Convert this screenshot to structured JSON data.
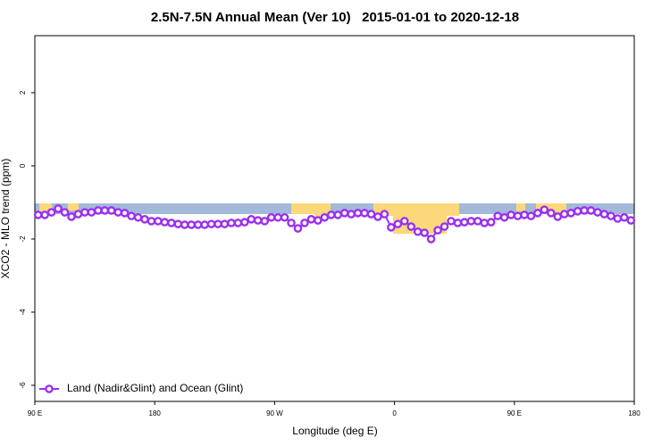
{
  "chart_data": {
    "type": "line",
    "title": "2.5N-7.5N Annual Mean (Ver 10)   2015-01-01 to 2020-12-18",
    "x_label": "Longitude (deg E)",
    "y_label": "XCO2 - MLO trend (ppm)",
    "xlim": [
      90,
      540
    ],
    "ylim": [
      -6.44,
      3.56
    ],
    "xticks": [
      {
        "value": 90,
        "label": "90 E"
      },
      180,
      {
        "value": 270,
        "label": "90 W"
      },
      {
        "value": 360,
        "label": "0"
      },
      {
        "value": 450,
        "label": "90 E"
      },
      {
        "value": 540,
        "label": "180"
      }
    ],
    "yticks": [
      -6,
      -4,
      -2,
      0,
      2
    ],
    "legend": "bottom-left",
    "series": [
      {
        "name": "Land (Nadir&Glint) and Ocean (Glint)",
        "color": "#9b30f0",
        "x": [
          92.5,
          97.5,
          102.5,
          107.5,
          112.5,
          117.5,
          122.5,
          127.5,
          132.5,
          137.5,
          142.5,
          147.5,
          152.5,
          157.5,
          162.5,
          167.5,
          172.5,
          177.5,
          182.5,
          187.5,
          192.5,
          197.5,
          202.5,
          207.5,
          212.5,
          217.5,
          222.5,
          227.5,
          232.5,
          237.5,
          242.5,
          247.5,
          252.5,
          257.5,
          262.5,
          267.5,
          272.5,
          277.5,
          282.5,
          287.5,
          292.5,
          297.5,
          302.5,
          307.5,
          312.5,
          317.5,
          322.5,
          327.5,
          332.5,
          337.5,
          342.5,
          347.5,
          352.5,
          357.5,
          362.5,
          367.5,
          372.5,
          377.5,
          382.5,
          387.5,
          392.5,
          397.5,
          402.5,
          407.5,
          412.5,
          417.5,
          422.5,
          427.5,
          432.5,
          437.5,
          442.5,
          447.5,
          452.5,
          457.5,
          462.5,
          467.5,
          472.5,
          477.5,
          482.5,
          487.5,
          492.5,
          497.5,
          502.5,
          507.5,
          512.5,
          517.5,
          522.5,
          527.5,
          532.5,
          537.5
        ],
        "values": [
          -1.34,
          -1.34,
          -1.27,
          -1.17,
          -1.27,
          -1.39,
          -1.32,
          -1.27,
          -1.27,
          -1.22,
          -1.22,
          -1.22,
          -1.27,
          -1.29,
          -1.37,
          -1.41,
          -1.46,
          -1.51,
          -1.51,
          -1.54,
          -1.56,
          -1.59,
          -1.61,
          -1.61,
          -1.61,
          -1.61,
          -1.59,
          -1.59,
          -1.59,
          -1.56,
          -1.56,
          -1.54,
          -1.46,
          -1.49,
          -1.51,
          -1.41,
          -1.41,
          -1.41,
          -1.56,
          -1.71,
          -1.56,
          -1.46,
          -1.49,
          -1.41,
          -1.34,
          -1.34,
          -1.29,
          -1.32,
          -1.29,
          -1.29,
          -1.32,
          -1.39,
          -1.32,
          -1.68,
          -1.59,
          -1.51,
          -1.66,
          -1.8,
          -1.83,
          -2.0,
          -1.76,
          -1.66,
          -1.51,
          -1.56,
          -1.54,
          -1.51,
          -1.51,
          -1.56,
          -1.54,
          -1.37,
          -1.41,
          -1.34,
          -1.37,
          -1.34,
          -1.37,
          -1.29,
          -1.2,
          -1.29,
          -1.39,
          -1.32,
          -1.29,
          -1.24,
          -1.22,
          -1.22,
          -1.27,
          -1.32,
          -1.37,
          -1.44,
          -1.41,
          -1.49
        ]
      }
    ]
  }
}
